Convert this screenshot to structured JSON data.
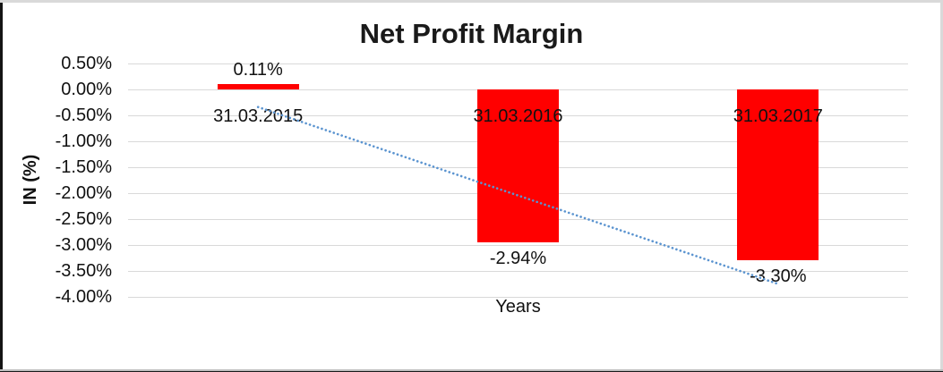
{
  "chart_data": {
    "type": "bar",
    "title": "Net Profit Margin",
    "categories": [
      "31.03.2015",
      "31.03.2016",
      "31.03.2017"
    ],
    "values": [
      0.11,
      -2.94,
      -3.3
    ],
    "data_labels": [
      "0.11%",
      "-2.94%",
      "-3.30%"
    ],
    "xlabel": "Years",
    "ylabel": "IN (%)",
    "ylim": [
      -4.0,
      0.5
    ],
    "ytick_step": 0.5,
    "yticks": [
      {
        "label": "0.50%",
        "value": 0.5
      },
      {
        "label": "0.00%",
        "value": 0.0
      },
      {
        "label": "-0.50%",
        "value": -0.5
      },
      {
        "label": "-1.00%",
        "value": -1.0
      },
      {
        "label": "-1.50%",
        "value": -1.5
      },
      {
        "label": "-2.00%",
        "value": -2.0
      },
      {
        "label": "-2.50%",
        "value": -2.5
      },
      {
        "label": "-3.00%",
        "value": -3.0
      },
      {
        "label": "-3.50%",
        "value": -3.5
      },
      {
        "label": "-4.00%",
        "value": -4.0
      }
    ],
    "grid": true,
    "legend": "none",
    "bar_color": "#FF0000",
    "gridline_color": "#D9D9D9",
    "text_color": "#111111",
    "trendline": {
      "type": "linear",
      "style": "dotted",
      "color": "#5B94D0",
      "start_value": -0.34,
      "end_value": -3.75
    }
  }
}
